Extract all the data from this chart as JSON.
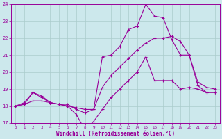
{
  "xlabel": "Windchill (Refroidissement éolien,°C)",
  "bg_color": "#cce8ec",
  "grid_color": "#aacccc",
  "line_color": "#990099",
  "xlim": [
    -0.5,
    23.5
  ],
  "ylim": [
    17,
    24
  ],
  "yticks": [
    17,
    18,
    19,
    20,
    21,
    22,
    23,
    24
  ],
  "xticks": [
    0,
    1,
    2,
    3,
    4,
    5,
    6,
    7,
    8,
    9,
    10,
    11,
    12,
    13,
    14,
    15,
    16,
    17,
    18,
    19,
    20,
    21,
    22,
    23
  ],
  "series": [
    [
      18.0,
      18.2,
      18.8,
      18.5,
      18.2,
      18.1,
      18.1,
      17.8,
      17.6,
      17.8,
      20.9,
      21.0,
      21.5,
      22.5,
      22.7,
      24.0,
      23.3,
      23.2,
      21.9,
      21.0,
      21.0,
      19.4,
      19.1,
      19.0
    ],
    [
      18.0,
      18.1,
      18.8,
      18.6,
      18.2,
      18.1,
      18.0,
      17.5,
      16.6,
      17.1,
      17.8,
      18.5,
      19.0,
      19.5,
      20.0,
      20.9,
      19.5,
      19.5,
      19.5,
      19.0,
      19.1,
      19.0,
      18.8,
      18.8
    ],
    [
      18.0,
      18.1,
      18.3,
      18.3,
      18.2,
      18.1,
      18.0,
      17.9,
      17.8,
      17.8,
      19.1,
      19.8,
      20.3,
      20.8,
      21.3,
      21.7,
      22.0,
      22.0,
      22.1,
      21.8,
      21.0,
      19.2,
      18.8,
      18.8
    ]
  ]
}
